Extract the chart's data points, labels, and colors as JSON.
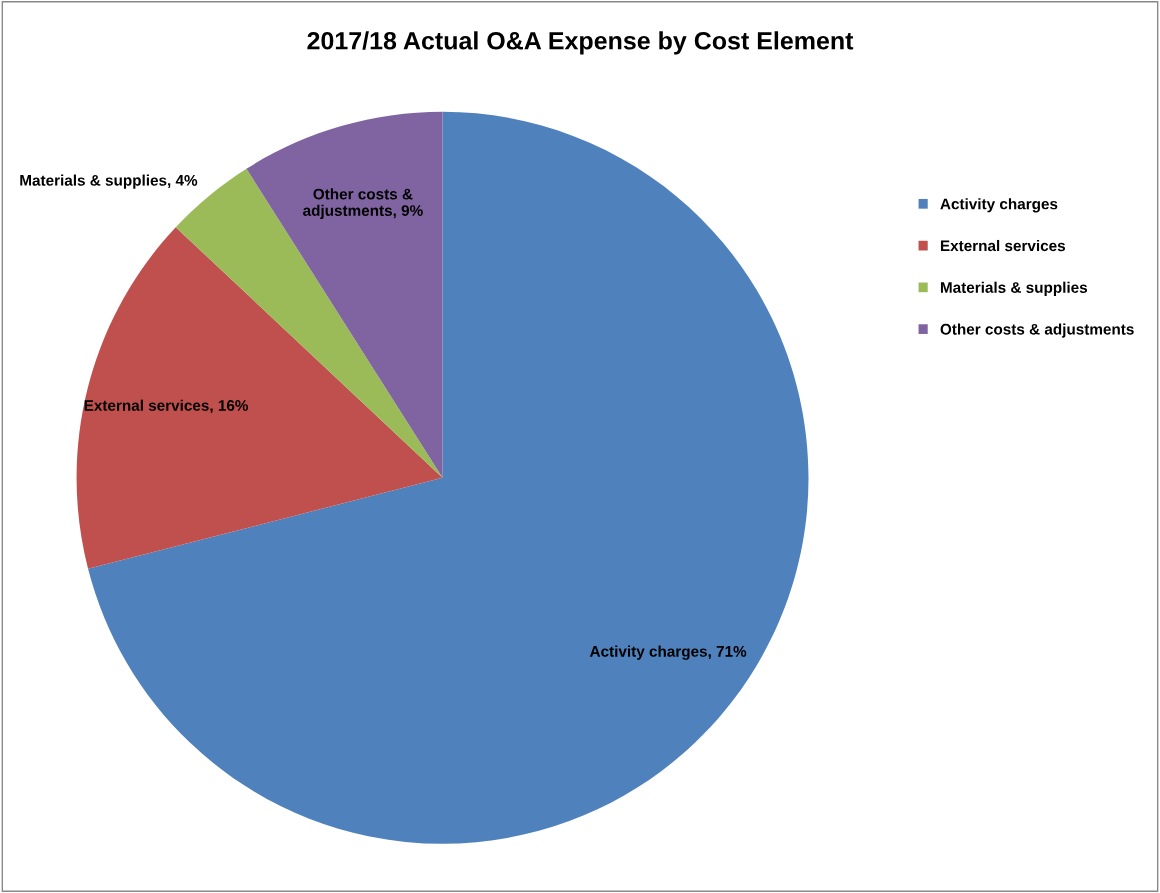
{
  "chart_data": {
    "type": "pie",
    "title": "2017/18 Actual O&A Expense by Cost Element",
    "categories": [
      "Activity charges",
      "External services",
      "Materials & supplies",
      "Other costs & adjustments"
    ],
    "values": [
      71,
      16,
      4,
      9
    ],
    "colors": [
      "#4f81bd",
      "#c0504d",
      "#9bbb59",
      "#8064a2"
    ],
    "value_labels": [
      "Activity charges, 71%",
      "External services, 16%",
      "Materials & supplies, 4%",
      "Other costs & adjustments, 9%"
    ],
    "legend": "right"
  }
}
